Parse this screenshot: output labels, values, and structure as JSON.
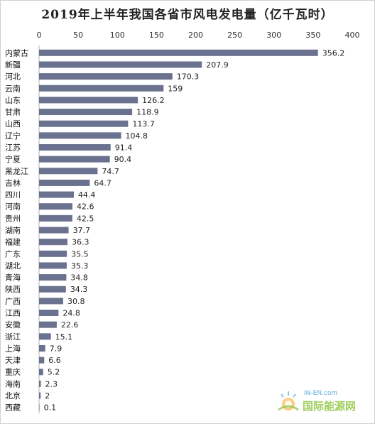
{
  "page": {
    "title": "2019年上半年我国各省市风电发电量（亿千瓦时）"
  },
  "chart_data": {
    "type": "bar",
    "orientation": "horizontal",
    "title": "2019年上半年我国各省市风电发电量（亿千瓦时）",
    "categories": [
      "内蒙古",
      "新疆",
      "河北",
      "云南",
      "山东",
      "甘肃",
      "山西",
      "辽宁",
      "江苏",
      "宁夏",
      "黑龙江",
      "吉林",
      "四川",
      "河南",
      "贵州",
      "湖南",
      "福建",
      "广东",
      "湖北",
      "青海",
      "陕西",
      "广西",
      "江西",
      "安徽",
      "浙江",
      "上海",
      "天津",
      "重庆",
      "海南",
      "北京",
      "西藏"
    ],
    "values": [
      356.2,
      207.9,
      170.3,
      159,
      126.2,
      118.9,
      113.7,
      104.8,
      91.4,
      90.4,
      74.7,
      64.7,
      44.4,
      42.6,
      42.5,
      37.7,
      36.3,
      35.5,
      35.3,
      34.8,
      34.3,
      30.8,
      24.8,
      22.6,
      15.1,
      7.9,
      6.6,
      5.2,
      2.3,
      2,
      0.1
    ],
    "value_labels": [
      "356.2",
      "207.9",
      "170.3",
      "159",
      "126.2",
      "118.9",
      "113.7",
      "104.8",
      "91.4",
      "90.4",
      "74.7",
      "64.7",
      "44.4",
      "42.6",
      "42.5",
      "37.7",
      "36.3",
      "35.5",
      "35.3",
      "34.8",
      "34.3",
      "30.8",
      "24.8",
      "22.6",
      "15.1",
      "7.9",
      "6.6",
      "5.2",
      "2.3",
      "2",
      "0.1"
    ],
    "xlim": [
      0,
      400
    ],
    "xticks": [
      0,
      50,
      100,
      150,
      200,
      250,
      300,
      350,
      400
    ],
    "axis_position": "top",
    "grid": false,
    "bar_color": "#6a7290"
  },
  "watermark": {
    "brand": "国际能源网",
    "domain": "IN-EN.com"
  }
}
